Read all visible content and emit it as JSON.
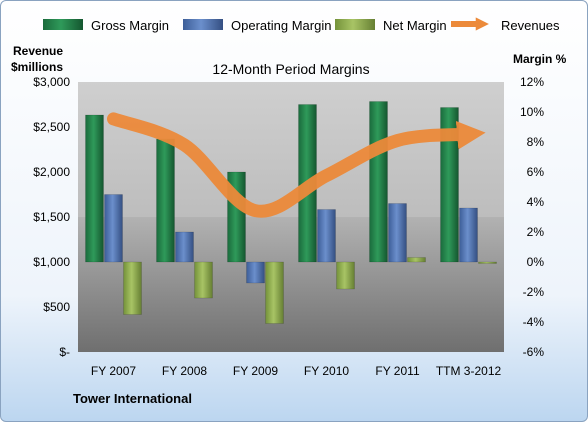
{
  "chart_data": {
    "type": "bar",
    "title": "12-Month Period Margins",
    "left_axis_title": [
      "Revenue",
      "$millions"
    ],
    "right_axis_title": "Margin %",
    "footer": "Tower International",
    "categories": [
      "FY 2007",
      "FY 2008",
      "FY 2009",
      "FY 2010",
      "FY 2011",
      "TTM 3-2012"
    ],
    "y_left": {
      "min": 0,
      "max": 3000,
      "ticks": [
        0,
        500,
        1000,
        1500,
        2000,
        2500,
        3000
      ],
      "tick_labels": [
        "$-",
        "$500",
        "$1,000",
        "$1,500",
        "$2,000",
        "$2,500",
        "$3,000"
      ]
    },
    "y_right": {
      "min": -6,
      "max": 12,
      "ticks": [
        -6,
        -4,
        -2,
        0,
        2,
        4,
        6,
        8,
        10,
        12
      ],
      "tick_labels": [
        "-6%",
        "-4%",
        "-2%",
        "0%",
        "2%",
        "4%",
        "6%",
        "8%",
        "10%",
        "12%"
      ]
    },
    "grid": false,
    "legend_position": "top",
    "series": [
      {
        "name": "Gross Margin",
        "type": "bar",
        "axis": "right",
        "color": "#1e7b45",
        "values": [
          9.8,
          8.2,
          6.0,
          10.5,
          10.7,
          10.3
        ]
      },
      {
        "name": "Operating Margin",
        "type": "bar",
        "axis": "right",
        "color": "#4a6fb0",
        "values": [
          4.5,
          2.0,
          -1.4,
          3.5,
          3.9,
          3.6
        ]
      },
      {
        "name": "Net Margin",
        "type": "bar",
        "axis": "right",
        "color": "#8fae47",
        "values": [
          -3.5,
          -2.4,
          -4.1,
          -1.8,
          0.3,
          0.0
        ]
      },
      {
        "name": "Revenues",
        "type": "line",
        "axis": "left",
        "color": "#ec8a3a",
        "values": [
          2590,
          2300,
          1570,
          1960,
          2350,
          2420
        ]
      }
    ]
  }
}
